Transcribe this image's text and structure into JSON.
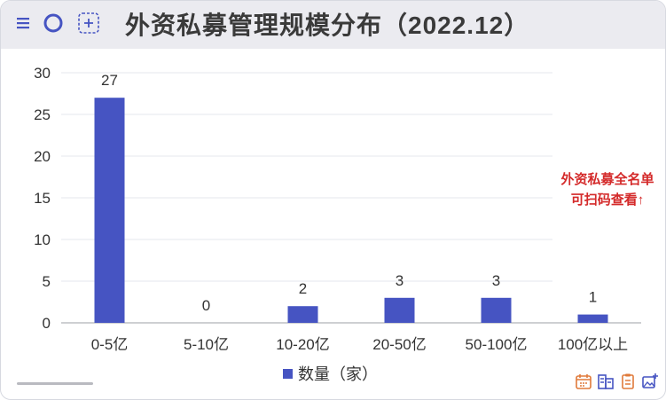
{
  "toolbar": {
    "icons": [
      "menu-icon",
      "circle-icon",
      "add-frame-icon"
    ]
  },
  "chart_data": {
    "type": "bar",
    "title": "外资私募管理规模分布（2022.12）",
    "categories": [
      "0-5亿",
      "5-10亿",
      "10-20亿",
      "20-50亿",
      "50-100亿",
      "100亿以上"
    ],
    "series": [
      {
        "name": "数量（家）",
        "values": [
          27,
          0,
          2,
          3,
          3,
          1
        ]
      }
    ],
    "ylim": [
      0,
      30
    ],
    "yticks": [
      0,
      5,
      10,
      15,
      20,
      25,
      30
    ],
    "grid": true,
    "legend": "bottom-center",
    "colors": {
      "bar": "#4654c2",
      "note": "#d42a2a"
    }
  },
  "note": {
    "line1": "外资私募全名单",
    "line2": "可扫码查看↑"
  },
  "bottom_toolbar": {
    "icons": [
      "calendar-icon",
      "building-icon",
      "clipboard-icon",
      "image-add-icon"
    ]
  }
}
